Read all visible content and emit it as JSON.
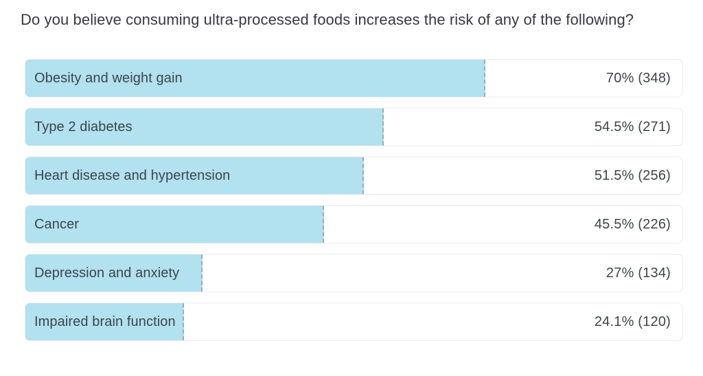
{
  "page": {
    "question": "Do you believe consuming ultra-processed foods increases the risk of any of the following?"
  },
  "colors": {
    "bar_fill": "#b2e1ef",
    "bar_edge_dash": "#a3a9ae",
    "track_border": "#eaecee",
    "title_text": "#343a40",
    "bar_text": "#3d444a"
  },
  "chart_data": {
    "type": "bar",
    "orientation": "horizontal",
    "title": "Do you believe consuming ultra-processed foods increases the risk of any of the following?",
    "categories": [
      "Obesity and weight gain",
      "Type 2 diabetes",
      "Heart disease and hypertension",
      "Cancer",
      "Depression and anxiety",
      "Impaired brain function"
    ],
    "values": [
      70,
      54.5,
      51.5,
      45.5,
      27,
      24.1
    ],
    "counts": [
      348,
      271,
      256,
      226,
      134,
      120
    ],
    "value_labels": [
      "70% (348)",
      "54.5% (271)",
      "51.5% (256)",
      "45.5% (226)",
      "27% (134)",
      "24.1% (120)"
    ],
    "xlim": [
      0,
      100
    ],
    "grid": false,
    "legend": false
  }
}
